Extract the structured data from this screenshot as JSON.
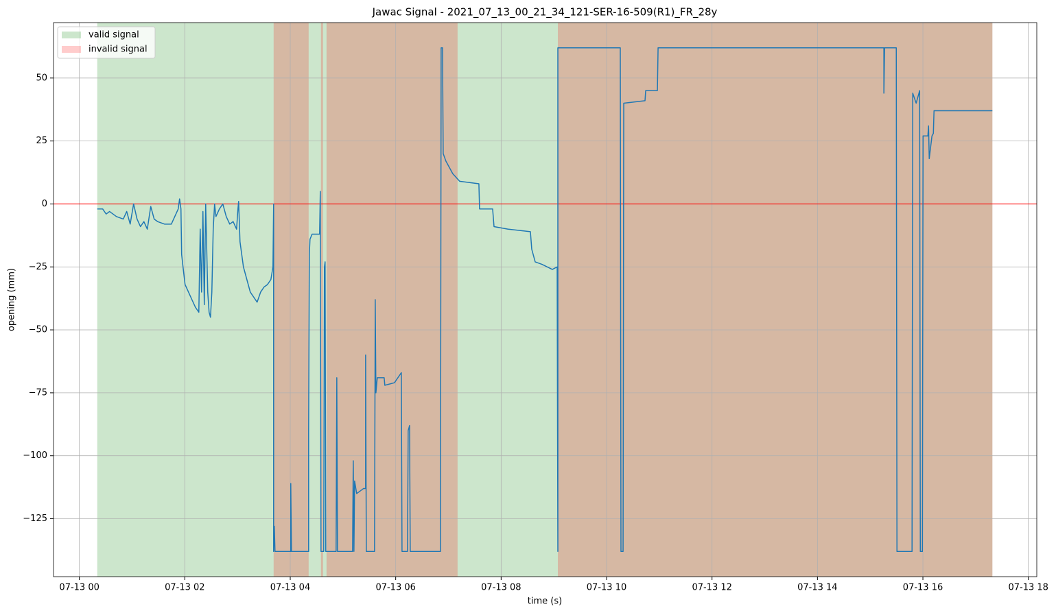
{
  "chart_data": {
    "type": "line",
    "title": "Jawac Signal - 2021_07_13_00_21_34_121-SER-16-509(R1)_FR_28y",
    "xlabel": "time (s)",
    "ylabel": "opening (mm)",
    "color": "#1f77b4",
    "grid": true,
    "legend": "upper left",
    "xlim": [
      -0.49,
      18.16
    ],
    "ylim": [
      -148,
      72
    ],
    "xticks": [
      {
        "value": 0,
        "label": "07-13 00"
      },
      {
        "value": 2,
        "label": "07-13 02"
      },
      {
        "value": 4,
        "label": "07-13 04"
      },
      {
        "value": 6,
        "label": "07-13 06"
      },
      {
        "value": 8,
        "label": "07-13 08"
      },
      {
        "value": 10,
        "label": "07-13 10"
      },
      {
        "value": 12,
        "label": "07-13 12"
      },
      {
        "value": 14,
        "label": "07-13 14"
      },
      {
        "value": 16,
        "label": "07-13 16"
      },
      {
        "value": 18,
        "label": "07-13 18"
      }
    ],
    "yticks": [
      {
        "value": -125,
        "label": "−125"
      },
      {
        "value": -100,
        "label": "−100"
      },
      {
        "value": -75,
        "label": "−75"
      },
      {
        "value": -50,
        "label": "−50"
      },
      {
        "value": -25,
        "label": "−25"
      },
      0,
      25,
      50
    ],
    "hlines": [
      {
        "value": 0,
        "color": "#ff0000"
      }
    ],
    "spans": [
      {
        "name": "valid signal",
        "color": "#008000",
        "ranges": [
          [
            0.339,
            17.318
          ]
        ]
      },
      {
        "name": "invalid signal",
        "color": "#ff0000",
        "ranges": [
          [
            3.685,
            4.349
          ],
          [
            4.583,
            4.622
          ],
          [
            4.688,
            7.174
          ],
          [
            9.076,
            17.318
          ]
        ]
      }
    ],
    "x": [
      0.339,
      0.443,
      0.508,
      0.573,
      0.703,
      0.833,
      0.898,
      0.964,
      1.029,
      1.094,
      1.159,
      1.224,
      1.289,
      1.354,
      1.419,
      1.484,
      1.615,
      1.745,
      1.81,
      1.875,
      1.901,
      1.927,
      1.94,
      1.966,
      2.005,
      2.07,
      2.135,
      2.201,
      2.266,
      2.292,
      2.318,
      2.344,
      2.37,
      2.396,
      2.435,
      2.461,
      2.487,
      2.513,
      2.539,
      2.565,
      2.591,
      2.656,
      2.721,
      2.786,
      2.852,
      2.917,
      2.982,
      3.008,
      3.021,
      3.047,
      3.112,
      3.177,
      3.242,
      3.307,
      3.372,
      3.438,
      3.503,
      3.568,
      3.633,
      3.672,
      3.685,
      3.685,
      3.698,
      3.711,
      4.01,
      4.01,
      4.023,
      4.349,
      4.349,
      4.362,
      4.375,
      4.414,
      4.557,
      4.57,
      4.583,
      4.635,
      4.648,
      4.661,
      4.674,
      4.87,
      4.883,
      4.896,
      5.182,
      5.195,
      5.208,
      5.221,
      5.26,
      5.391,
      5.43,
      5.43,
      5.443,
      5.599,
      5.612,
      5.625,
      5.651,
      5.781,
      5.794,
      5.977,
      6.107,
      6.12,
      6.224,
      6.237,
      6.263,
      6.276,
      6.849,
      6.862,
      6.888,
      6.901,
      6.953,
      7.083,
      7.214,
      7.578,
      7.591,
      7.839,
      7.865,
      8.125,
      8.555,
      8.581,
      8.646,
      8.776,
      8.971,
      9.063,
      9.076,
      9.076,
      10.26,
      10.273,
      10.313,
      10.326,
      10.729,
      10.742,
      10.964,
      10.977,
      15.26,
      15.26,
      15.273,
      15.495,
      15.508,
      15.794,
      15.807,
      15.872,
      15.938,
      15.951,
      15.99,
      16.003,
      16.094,
      16.107,
      16.12,
      16.172,
      16.198,
      16.211,
      17.318
    ],
    "values": [
      -2,
      -2,
      -4,
      -3,
      -5,
      -6,
      -3,
      -8,
      0,
      -6,
      -9,
      -7,
      -10,
      -1,
      -6,
      -7,
      -8,
      -8,
      -5,
      -2,
      2,
      -2,
      -20,
      -25,
      -32,
      -35,
      -38,
      -41,
      -43,
      -10,
      -35,
      -3,
      -40,
      0,
      -35,
      -43,
      -45,
      -35,
      -10,
      0,
      -5,
      -2,
      0,
      -5,
      -8,
      -7,
      -10,
      -2,
      1,
      -15,
      -25,
      -30,
      -35,
      -37,
      -39,
      -35,
      -33,
      -32,
      -30,
      -25,
      0,
      -138,
      -128,
      -138,
      -138,
      -111,
      -138,
      -138,
      -91,
      -20,
      -14,
      -12,
      -12,
      5,
      -138,
      -138,
      -25,
      -23,
      -138,
      -138,
      -69,
      -138,
      -138,
      -102,
      -138,
      -110,
      -115,
      -113,
      -113,
      -60,
      -138,
      -138,
      -38,
      -75,
      -69,
      -69,
      -72,
      -71,
      -67,
      -138,
      -138,
      -90,
      -88,
      -138,
      -138,
      62,
      62,
      20,
      17,
      12,
      9,
      8,
      -2,
      -2,
      -9,
      -10,
      -11,
      -18,
      -23,
      -24,
      -26,
      -25,
      -138,
      62,
      62,
      -138,
      -138,
      40,
      41,
      45,
      45,
      62,
      62,
      44,
      62,
      62,
      -138,
      -138,
      44,
      40,
      45,
      -138,
      -138,
      27,
      27,
      31,
      18,
      27,
      28,
      37,
      37
    ]
  }
}
